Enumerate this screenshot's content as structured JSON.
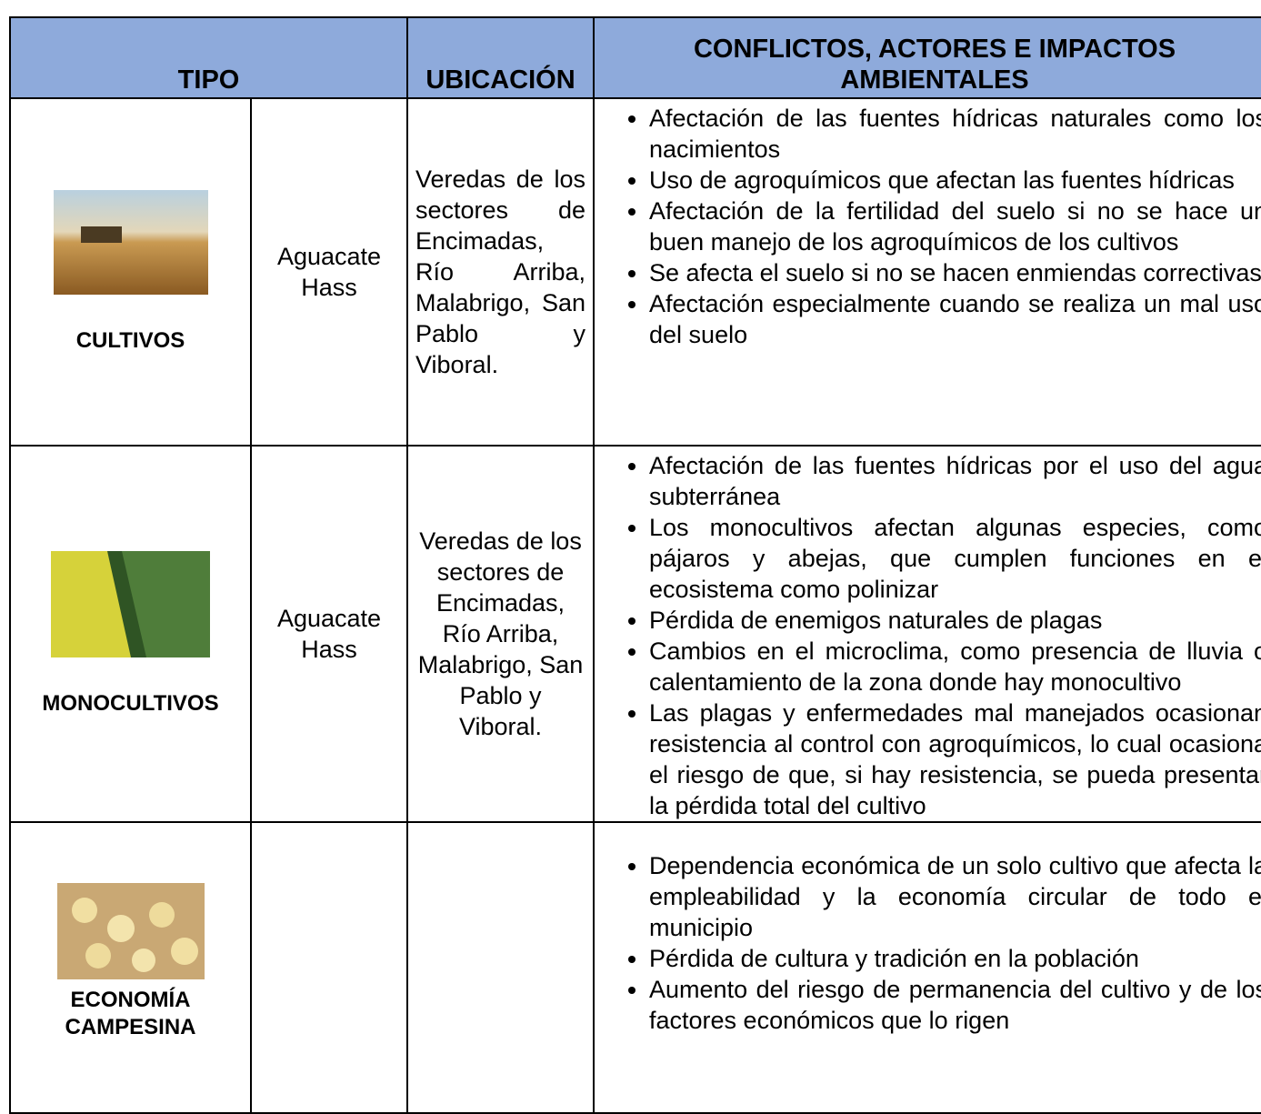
{
  "table": {
    "header": [
      "TIPO",
      "UBICACIÓN",
      "CONFLICTOS, ACTORES E IMPACTOS AMBIENTALES"
    ],
    "rows": [
      {
        "tipo": "CULTIVOS",
        "producto": "Aguacate Hass",
        "ubicacion": "Veredas de los sectores de Encimadas, Río Arriba, Malabrigo, San Pablo y Viboral.",
        "impactos": [
          "Afectación de las fuentes hídricas naturales como los nacimientos",
          "Uso de agroquímicos que afectan las fuentes hídricas",
          "Afectación de la fertilidad del suelo si no se hace un buen manejo de los agroquímicos de los cultivos",
          "Se afecta el suelo si no se hacen enmiendas correctivas",
          "Afectación especialmente cuando se realiza un mal uso del suelo"
        ]
      },
      {
        "tipo": "MONOCULTIVOS",
        "producto": "Aguacate Hass",
        "ubicacion": "Veredas de los sectores de Encimadas, Río Arriba, Malabrigo, San Pablo y Viboral.",
        "impactos": [
          "Afectación de las fuentes hídricas por el uso del agua subterránea",
          "Los monocultivos afectan algunas especies, como pájaros y abejas, que cumplen funciones en el ecosistema como polinizar",
          "Pérdida de enemigos naturales de plagas",
          "Cambios en el microclima, como presencia de lluvia o calentamiento de la zona donde hay monocultivo",
          "Las plagas y enfermedades mal manejados ocasionan resistencia al control con agroquímicos, lo cual ocasiona el riesgo de que, si hay resistencia, se pueda presentar la pérdida total del cultivo"
        ]
      },
      {
        "tipo": "ECONOMÍA CAMPESINA",
        "impactos": [
          "Dependencia económica de un solo cultivo que afecta la empleabilidad y la economía circular de todo el municipio",
          "Pérdida de cultura y tradición en la población",
          "Aumento del riesgo de permanencia del cultivo y de los factores económicos que lo rigen"
        ]
      }
    ]
  }
}
